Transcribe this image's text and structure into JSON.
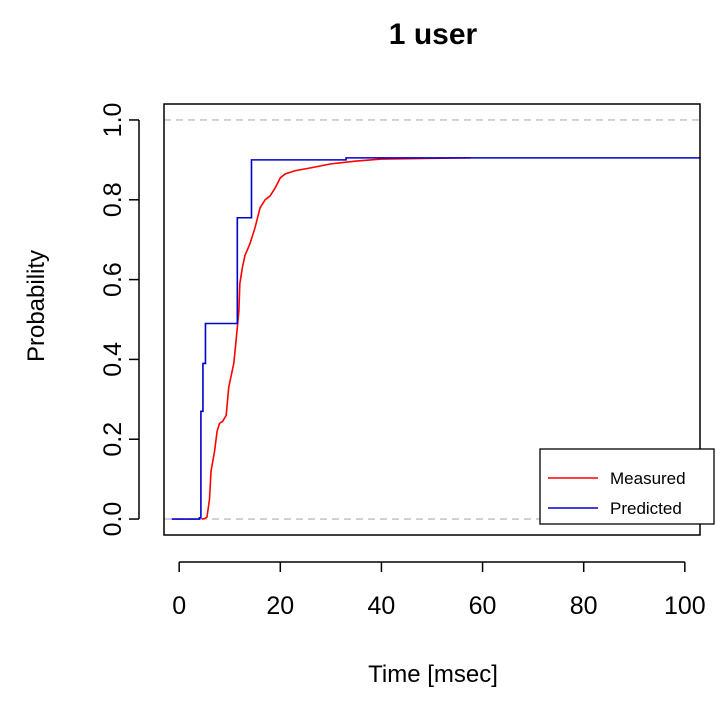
{
  "chart_data": {
    "type": "line",
    "title": "1 user",
    "xlabel": "Time [msec]",
    "ylabel": "Probability",
    "xlim": [
      -3,
      103
    ],
    "ylim": [
      -0.04,
      1.04
    ],
    "x_ticks": [
      0,
      20,
      40,
      60,
      80,
      100
    ],
    "x_tick_labels": [
      "0",
      "20",
      "40",
      "60",
      "80",
      "100"
    ],
    "y_ticks": [
      0.0,
      0.2,
      0.4,
      0.6,
      0.8,
      1.0
    ],
    "y_tick_labels": [
      "0.0",
      "0.2",
      "0.4",
      "0.6",
      "0.8",
      "1.0"
    ],
    "reference_lines": [
      0,
      1
    ],
    "legend_position": "bottom-right",
    "series": [
      {
        "name": "Measured",
        "color": "#ff0000",
        "step": false,
        "points": [
          [
            4.5,
            0.0
          ],
          [
            5.0,
            0.001
          ],
          [
            5.5,
            0.005
          ],
          [
            6.0,
            0.05
          ],
          [
            6.3,
            0.12
          ],
          [
            7.0,
            0.17
          ],
          [
            7.5,
            0.22
          ],
          [
            8.0,
            0.24
          ],
          [
            8.6,
            0.245
          ],
          [
            9.3,
            0.26
          ],
          [
            9.8,
            0.33
          ],
          [
            10.3,
            0.36
          ],
          [
            10.8,
            0.39
          ],
          [
            11.2,
            0.44
          ],
          [
            11.8,
            0.52
          ],
          [
            12.0,
            0.59
          ],
          [
            12.5,
            0.63
          ],
          [
            13.0,
            0.66
          ],
          [
            14.0,
            0.69
          ],
          [
            15.0,
            0.73
          ],
          [
            16.0,
            0.78
          ],
          [
            17.0,
            0.8
          ],
          [
            18.0,
            0.81
          ],
          [
            19.0,
            0.83
          ],
          [
            20.0,
            0.855
          ],
          [
            21.0,
            0.865
          ],
          [
            23.0,
            0.873
          ],
          [
            26.0,
            0.88
          ],
          [
            30.0,
            0.89
          ],
          [
            35.0,
            0.897
          ],
          [
            40.0,
            0.902
          ],
          [
            45.0,
            0.903
          ],
          [
            50.0,
            0.904
          ],
          [
            57.7,
            0.905
          ]
        ]
      },
      {
        "name": "Predicted",
        "color": "#0000cc",
        "step": true,
        "points": [
          [
            -1.5,
            0.0
          ],
          [
            4.0,
            0.003
          ],
          [
            4.3,
            0.27
          ],
          [
            4.7,
            0.39
          ],
          [
            5.2,
            0.49
          ],
          [
            11.5,
            0.755
          ],
          [
            14.3,
            0.9
          ],
          [
            33.0,
            0.905
          ],
          [
            103.0,
            0.906
          ]
        ]
      }
    ]
  }
}
